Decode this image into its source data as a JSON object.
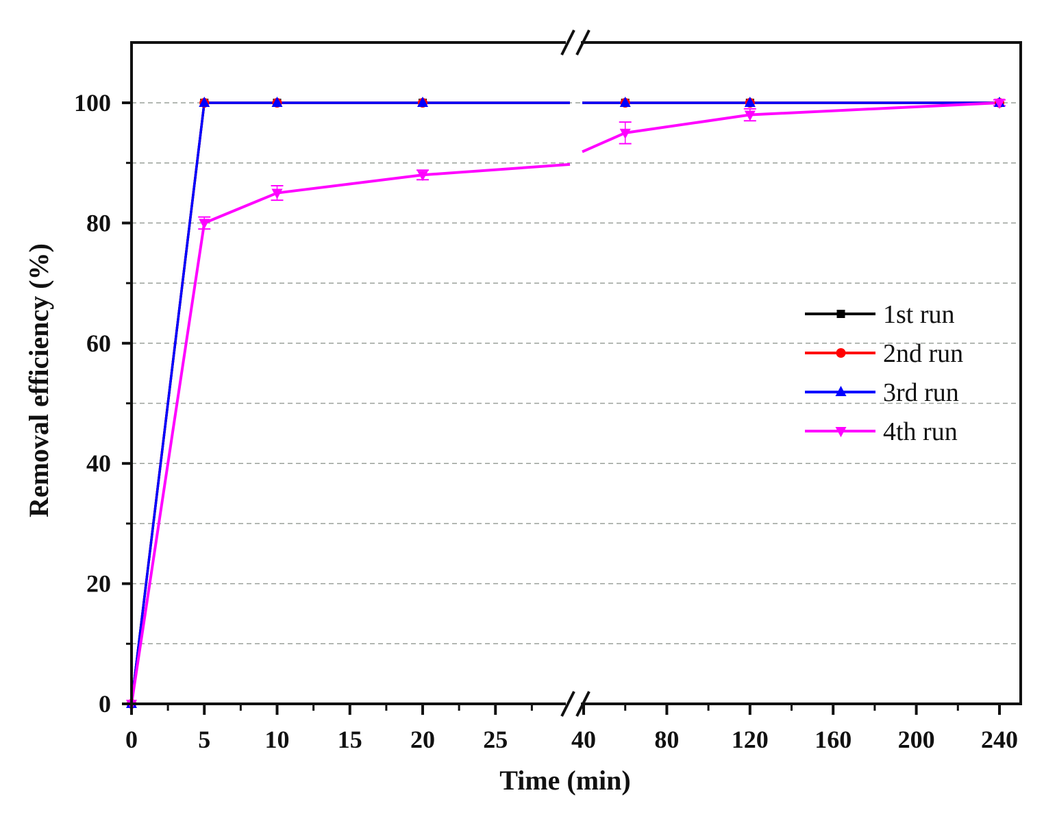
{
  "chart_data": {
    "type": "line",
    "title": "",
    "xlabel": "Time (min)",
    "ylabel": "Removal efficiency (%)",
    "ylim": [
      0,
      110
    ],
    "y_ticks": [
      0,
      20,
      40,
      60,
      80,
      100
    ],
    "y_minor_ticks": [
      10,
      30,
      50,
      70,
      90
    ],
    "x_axis_break": {
      "from": 30,
      "to": 40
    },
    "x_segments": [
      {
        "range": [
          0,
          30
        ],
        "ticks": [
          0,
          5,
          10,
          15,
          20,
          25
        ],
        "minor_ticks": [
          2.5,
          7.5,
          12.5,
          17.5,
          22.5,
          27.5
        ]
      },
      {
        "range": [
          40,
          250
        ],
        "ticks": [
          40,
          80,
          120,
          160,
          200,
          240
        ],
        "minor_ticks": [
          60,
          100,
          140,
          180,
          220
        ]
      }
    ],
    "grid": {
      "horizontal": true,
      "style": "dashed",
      "at": [
        10,
        20,
        30,
        40,
        50,
        60,
        70,
        80,
        90,
        100
      ]
    },
    "legend_position": "center-right",
    "x": [
      0,
      5,
      10,
      20,
      60,
      120,
      240
    ],
    "series": [
      {
        "name": "1st run",
        "color": "#000000",
        "marker": "square",
        "values": [
          0,
          100,
          100,
          100,
          100,
          100,
          100
        ]
      },
      {
        "name": "2nd run",
        "color": "#ff0000",
        "marker": "circle",
        "values": [
          0,
          100,
          100,
          100,
          100,
          100,
          100
        ]
      },
      {
        "name": "3rd run",
        "color": "#0000ff",
        "marker": "triangle-up",
        "values": [
          0,
          100,
          100,
          100,
          100,
          100,
          100
        ]
      },
      {
        "name": "4th run",
        "color": "#ff00ff",
        "marker": "triangle-down",
        "values": [
          0,
          80,
          85,
          88,
          95,
          98,
          100
        ],
        "error": [
          0,
          1,
          1.2,
          0.8,
          1.8,
          1,
          0.5
        ]
      }
    ]
  }
}
